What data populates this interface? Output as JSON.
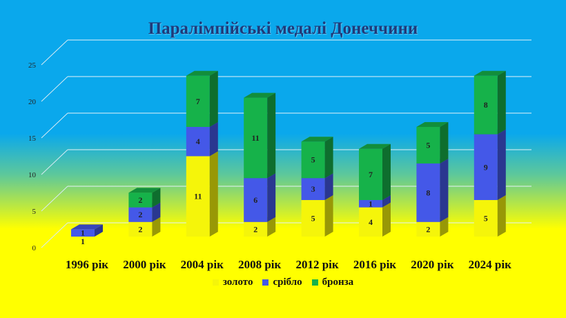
{
  "chart_data": {
    "type": "bar",
    "stacked": true,
    "title": "Паралімпійські медалі Донеччини",
    "categories": [
      "1996 рік",
      "2000 рік",
      "2004 рік",
      "2008 рік",
      "2012 рік",
      "2016 рік",
      "2020 рік",
      "2024 рік"
    ],
    "series": [
      {
        "name": "золото",
        "values": [
          null,
          2,
          11,
          2,
          5,
          4,
          2,
          5
        ],
        "labels": [
          "",
          "2",
          "11",
          "2",
          "5",
          "4",
          "2",
          "5"
        ],
        "color": "#f5f50a"
      },
      {
        "name": "срібло",
        "values": [
          1,
          2,
          4,
          6,
          3,
          1,
          8,
          9
        ],
        "labels": [
          "1",
          "2",
          "4",
          "6",
          "3",
          "1",
          "8",
          "9"
        ],
        "color": "#4458e8"
      },
      {
        "name": "бронза",
        "values": [
          null,
          2,
          7,
          11,
          5,
          7,
          5,
          8
        ],
        "labels": [
          "",
          "2",
          "7",
          "11",
          "5",
          "7",
          "5",
          "8"
        ],
        "color": "#16b24a"
      }
    ],
    "extra_labels": [
      {
        "category": "1996 рік",
        "text": "1"
      }
    ],
    "yticks": [
      "0",
      "5",
      "10",
      "15",
      "20",
      "25"
    ],
    "ylim": [
      0,
      25
    ],
    "grid": true,
    "legend": "bottom",
    "three_d": true
  },
  "colors": {
    "background_top": "#0aa8ec",
    "background_bottom": "#ffff00",
    "title": "#1f3a7a"
  }
}
